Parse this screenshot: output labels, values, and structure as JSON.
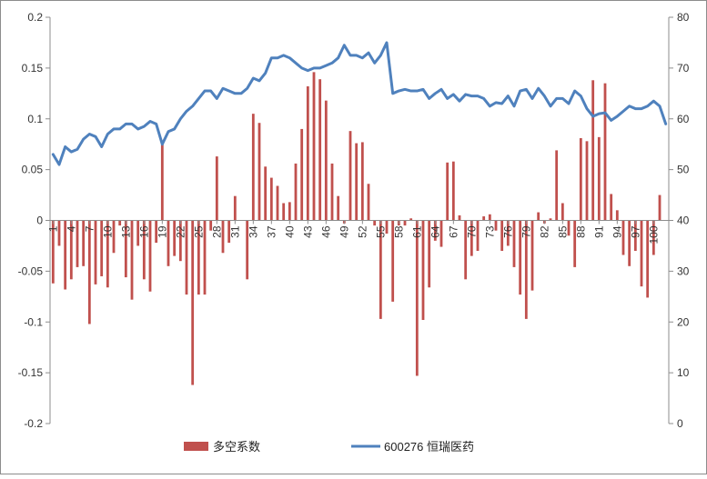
{
  "chart_data": {
    "type": "bar",
    "title": "",
    "xlabel": "",
    "ylabel": "",
    "left_axis": {
      "min": -0.2,
      "max": 0.2,
      "ticks": [
        -0.2,
        -0.15,
        -0.1,
        -0.05,
        0,
        0.05,
        0.1,
        0.15,
        0.2
      ],
      "tick_labels": [
        "-0.2",
        "-0.15",
        "-0.1",
        "-0.05",
        "0",
        "0.05",
        "0.1",
        "0.15",
        "0.2"
      ]
    },
    "right_axis": {
      "min": 0,
      "max": 80,
      "ticks": [
        0,
        10,
        20,
        30,
        40,
        50,
        60,
        70,
        80
      ],
      "tick_labels": [
        "0",
        "10",
        "20",
        "30",
        "40",
        "50",
        "60",
        "70",
        "80"
      ]
    },
    "x": {
      "min": 1,
      "max": 102,
      "ticks": [
        1,
        4,
        7,
        10,
        13,
        16,
        19,
        22,
        25,
        28,
        31,
        34,
        37,
        40,
        43,
        46,
        49,
        52,
        55,
        58,
        61,
        64,
        67,
        70,
        73,
        76,
        79,
        82,
        85,
        88,
        91,
        94,
        97,
        100
      ],
      "tick_labels": [
        "1",
        "4",
        "7",
        "10",
        "13",
        "16",
        "19",
        "22",
        "25",
        "28",
        "31",
        "34",
        "37",
        "40",
        "43",
        "46",
        "49",
        "52",
        "55",
        "58",
        "61",
        "64",
        "67",
        "70",
        "73",
        "76",
        "79",
        "82",
        "85",
        "88",
        "91",
        "94",
        "97",
        "100"
      ]
    },
    "legend": {
      "placement": "bottom",
      "entries": [
        "多空系数",
        "600276 恒瑞医药"
      ]
    },
    "grid": false,
    "series": [
      {
        "name": "多空系数",
        "type": "bar",
        "axis": "left",
        "color": "#c0504d",
        "values": [
          -0.062,
          -0.025,
          -0.068,
          -0.058,
          -0.046,
          -0.045,
          -0.102,
          -0.063,
          -0.055,
          -0.066,
          -0.032,
          -0.005,
          -0.056,
          -0.078,
          -0.025,
          -0.058,
          -0.07,
          -0.022,
          0.075,
          -0.045,
          -0.035,
          -0.04,
          -0.073,
          -0.162,
          -0.073,
          -0.073,
          -0.01,
          0.063,
          -0.032,
          -0.022,
          0.024,
          0.0,
          -0.058,
          0.105,
          0.096,
          0.053,
          0.042,
          0.034,
          0.017,
          0.018,
          0.056,
          0.09,
          0.132,
          0.146,
          0.139,
          0.118,
          0.056,
          0.024,
          -0.003,
          0.088,
          0.076,
          0.077,
          0.036,
          -0.005,
          -0.097,
          -0.013,
          -0.08,
          -0.005,
          -0.005,
          0.002,
          -0.153,
          -0.098,
          -0.066,
          -0.02,
          -0.026,
          0.057,
          0.058,
          0.005,
          -0.058,
          -0.035,
          -0.03,
          0.004,
          0.006,
          -0.01,
          -0.03,
          -0.025,
          -0.046,
          -0.073,
          -0.097,
          -0.069,
          0.008,
          -0.003,
          0.002,
          0.069,
          0.017,
          -0.015,
          -0.046,
          0.081,
          0.078,
          0.138,
          0.082,
          0.135,
          0.026,
          0.01,
          -0.034,
          -0.045,
          -0.03,
          -0.065,
          -0.076,
          -0.034,
          0.025,
          0.0
        ]
      },
      {
        "name": "600276 恒瑞医药",
        "type": "line",
        "axis": "right",
        "color": "#4f81bd",
        "values": [
          53.0,
          51.0,
          54.5,
          53.5,
          54.0,
          56.0,
          57.0,
          56.5,
          54.5,
          57.0,
          58.0,
          58.0,
          59.0,
          59.0,
          58.0,
          58.5,
          59.5,
          59.0,
          55.0,
          57.5,
          58.0,
          60.0,
          61.5,
          62.5,
          64.0,
          65.5,
          65.5,
          64.0,
          66.0,
          65.5,
          65.0,
          65.0,
          66.0,
          68.0,
          67.5,
          69.0,
          72.0,
          72.0,
          72.5,
          72.0,
          71.0,
          70.0,
          69.5,
          70.0,
          70.0,
          70.5,
          71.0,
          72.0,
          74.5,
          72.5,
          72.5,
          72.0,
          73.0,
          71.0,
          72.5,
          75.0,
          65.0,
          65.5,
          65.8,
          65.5,
          65.5,
          65.8,
          64.0,
          65.0,
          65.8,
          64.0,
          64.8,
          63.5,
          64.8,
          64.5,
          64.5,
          64.0,
          62.5,
          63.2,
          63.0,
          64.5,
          62.5,
          65.5,
          65.8,
          64.0,
          66.0,
          64.5,
          62.5,
          64.0,
          64.0,
          63.0,
          65.5,
          64.5,
          62.0,
          60.5,
          61.0,
          61.2,
          59.7,
          60.5,
          61.5,
          62.5,
          62.0,
          62.0,
          62.5,
          63.5,
          62.5,
          59.0
        ]
      }
    ]
  }
}
